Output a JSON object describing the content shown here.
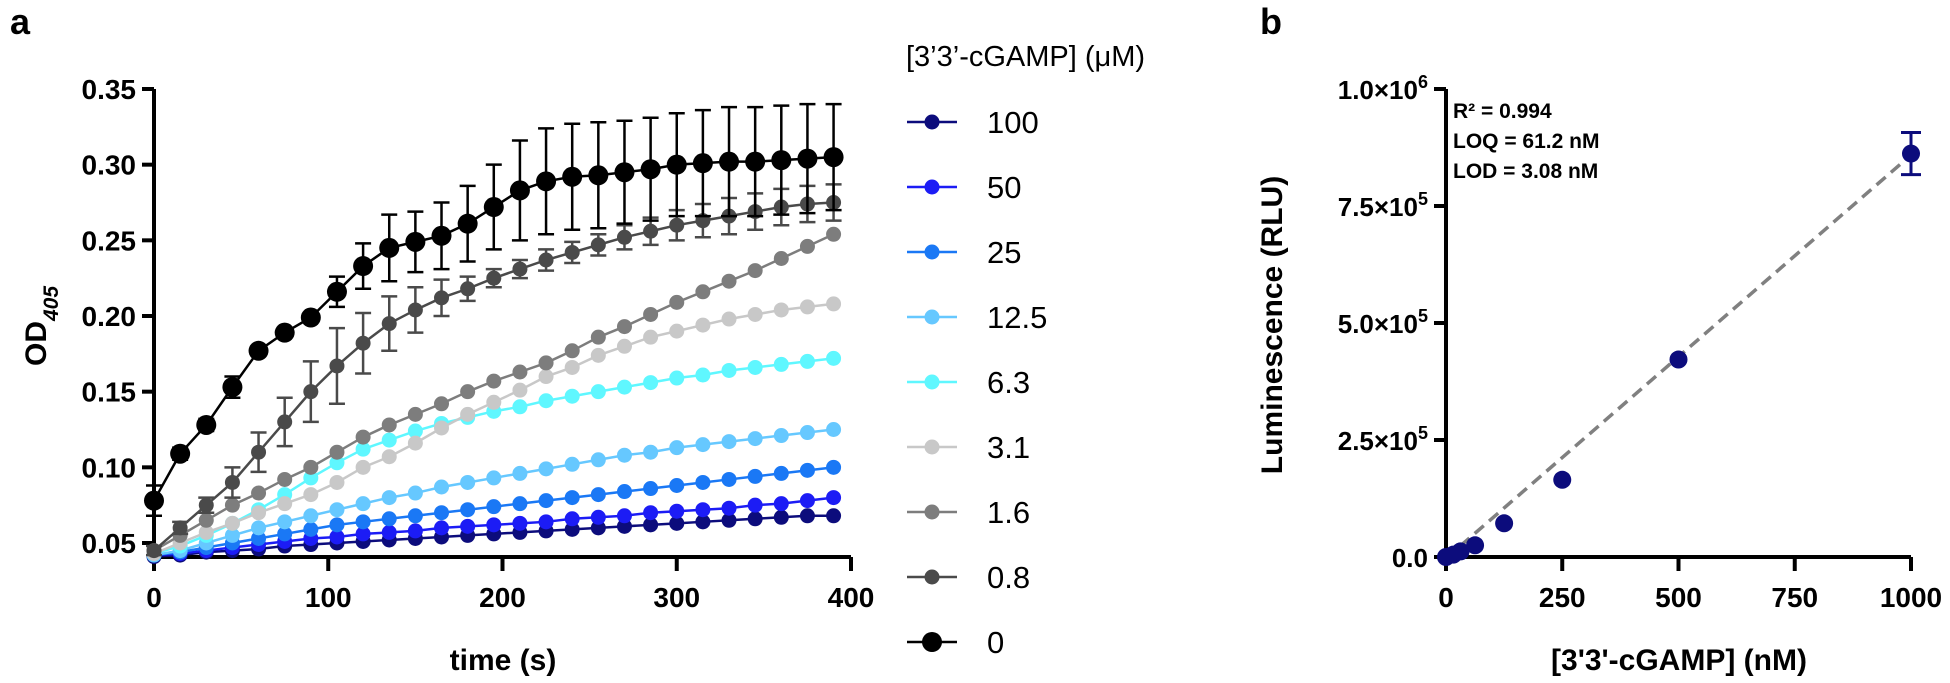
{
  "chart_data": [
    {
      "panel": "a",
      "type": "line",
      "title": "",
      "xlabel": "time (s)",
      "ylabel": "OD",
      "ylabel_sub": "405",
      "xlim": [
        0,
        400
      ],
      "ylim": [
        0.04,
        0.35
      ],
      "xticks": [
        "0",
        "100",
        "200",
        "300",
        "400"
      ],
      "yticks": [
        "0.05",
        "0.10",
        "0.15",
        "0.20",
        "0.25",
        "0.30",
        "0.35"
      ],
      "legend_title": "[3’3’-cGAMP] (μM)",
      "legend_position": "right",
      "x": [
        0,
        15,
        30,
        45,
        60,
        75,
        90,
        105,
        120,
        135,
        150,
        165,
        180,
        195,
        210,
        225,
        240,
        255,
        270,
        285,
        300,
        315,
        330,
        345,
        360,
        375,
        390
      ],
      "series": [
        {
          "name": "100",
          "color": "#0c0c7c",
          "values": [
            0.041,
            0.042,
            0.044,
            0.045,
            0.046,
            0.048,
            0.049,
            0.05,
            0.051,
            0.052,
            0.053,
            0.054,
            0.055,
            0.056,
            0.057,
            0.058,
            0.059,
            0.06,
            0.061,
            0.062,
            0.063,
            0.064,
            0.065,
            0.066,
            0.067,
            0.068,
            0.068
          ]
        },
        {
          "name": "50",
          "color": "#1c1cf5",
          "values": [
            0.042,
            0.043,
            0.045,
            0.047,
            0.049,
            0.051,
            0.053,
            0.054,
            0.056,
            0.057,
            0.058,
            0.06,
            0.061,
            0.062,
            0.063,
            0.064,
            0.066,
            0.067,
            0.068,
            0.07,
            0.071,
            0.072,
            0.073,
            0.075,
            0.076,
            0.078,
            0.08
          ]
        },
        {
          "name": "25",
          "color": "#1a78f5",
          "values": [
            0.042,
            0.044,
            0.047,
            0.05,
            0.053,
            0.056,
            0.059,
            0.062,
            0.064,
            0.066,
            0.068,
            0.07,
            0.072,
            0.074,
            0.076,
            0.078,
            0.08,
            0.082,
            0.084,
            0.086,
            0.088,
            0.09,
            0.092,
            0.094,
            0.096,
            0.098,
            0.1
          ]
        },
        {
          "name": "12.5",
          "color": "#66c8ff",
          "values": [
            0.042,
            0.045,
            0.05,
            0.055,
            0.06,
            0.064,
            0.068,
            0.072,
            0.076,
            0.08,
            0.083,
            0.087,
            0.09,
            0.093,
            0.096,
            0.099,
            0.102,
            0.105,
            0.108,
            0.11,
            0.113,
            0.115,
            0.117,
            0.119,
            0.121,
            0.123,
            0.125
          ]
        },
        {
          "name": "6.3",
          "color": "#5ff7ff",
          "values": [
            0.043,
            0.048,
            0.055,
            0.063,
            0.072,
            0.082,
            0.093,
            0.103,
            0.112,
            0.118,
            0.124,
            0.129,
            0.133,
            0.137,
            0.14,
            0.144,
            0.147,
            0.15,
            0.153,
            0.156,
            0.159,
            0.161,
            0.164,
            0.166,
            0.168,
            0.17,
            0.172
          ]
        },
        {
          "name": "3.1",
          "color": "#c8c8c8",
          "values": [
            0.043,
            0.05,
            0.057,
            0.063,
            0.07,
            0.076,
            0.082,
            0.09,
            0.1,
            0.107,
            0.116,
            0.126,
            0.135,
            0.143,
            0.151,
            0.16,
            0.166,
            0.174,
            0.18,
            0.186,
            0.19,
            0.194,
            0.198,
            0.201,
            0.204,
            0.206,
            0.208
          ]
        },
        {
          "name": "1.6",
          "color": "#7d7d7d",
          "values": [
            0.045,
            0.055,
            0.065,
            0.075,
            0.083,
            0.092,
            0.1,
            0.11,
            0.12,
            0.128,
            0.135,
            0.142,
            0.15,
            0.157,
            0.163,
            0.169,
            0.177,
            0.186,
            0.193,
            0.201,
            0.209,
            0.216,
            0.223,
            0.23,
            0.238,
            0.246,
            0.254
          ]
        },
        {
          "name": "0.8",
          "color": "#4a4a4a",
          "values": [
            0.045,
            0.06,
            0.075,
            0.09,
            0.11,
            0.13,
            0.15,
            0.167,
            0.182,
            0.195,
            0.204,
            0.212,
            0.218,
            0.225,
            0.231,
            0.237,
            0.242,
            0.247,
            0.252,
            0.256,
            0.26,
            0.263,
            0.266,
            0.269,
            0.272,
            0.274,
            0.275
          ],
          "errors": [
            0.003,
            0.004,
            0.005,
            0.01,
            0.013,
            0.016,
            0.02,
            0.025,
            0.02,
            0.018,
            0.015,
            0.012,
            0.008,
            0.006,
            0.006,
            0.007,
            0.007,
            0.007,
            0.008,
            0.009,
            0.01,
            0.011,
            0.012,
            0.012,
            0.012,
            0.012,
            0.012
          ]
        },
        {
          "name": "0",
          "color": "#000000",
          "values": [
            0.078,
            0.109,
            0.128,
            0.153,
            0.177,
            0.189,
            0.199,
            0.216,
            0.233,
            0.245,
            0.249,
            0.253,
            0.261,
            0.272,
            0.283,
            0.289,
            0.292,
            0.293,
            0.295,
            0.297,
            0.3,
            0.301,
            0.302,
            0.302,
            0.303,
            0.304,
            0.305
          ],
          "errors": [
            0.01,
            0.004,
            0.004,
            0.007,
            0,
            0,
            0.002,
            0.01,
            0.015,
            0.022,
            0.02,
            0.022,
            0.025,
            0.028,
            0.033,
            0.035,
            0.035,
            0.035,
            0.034,
            0.034,
            0.034,
            0.035,
            0.036,
            0.036,
            0.036,
            0.036,
            0.035
          ]
        }
      ]
    },
    {
      "panel": "b",
      "type": "scatter",
      "xlabel": "[3'3'-cGAMP] (nM)",
      "ylabel": "Luminescence (RLU)",
      "xlim": [
        0,
        1000
      ],
      "ylim": [
        0,
        1000000
      ],
      "xticks": [
        "0",
        "250",
        "500",
        "750",
        "1000"
      ],
      "yticks": [
        {
          "mant": "0.0",
          "exp": ""
        },
        {
          "mant": "2.5×10",
          "exp": "5"
        },
        {
          "mant": "5.0×10",
          "exp": "5"
        },
        {
          "mant": "7.5×10",
          "exp": "5"
        },
        {
          "mant": "1.0×10",
          "exp": "6"
        }
      ],
      "color": "#0c0c7c",
      "fit_color": "#808080",
      "x": [
        0,
        15.6,
        31.25,
        62.5,
        125,
        250,
        500,
        1000
      ],
      "values": [
        0,
        5000,
        12000,
        25000,
        72000,
        165000,
        422000,
        862000
      ],
      "errors": [
        0,
        0,
        0,
        0,
        0,
        0,
        0,
        45000
      ],
      "fit": {
        "slope": 862,
        "intercept": -3000
      },
      "annotations": [
        "R² = 0.994",
        "LOQ = 61.2 nM",
        "LOD = 3.08 nM"
      ]
    }
  ],
  "panel_labels": {
    "a": "a",
    "b": "b"
  }
}
